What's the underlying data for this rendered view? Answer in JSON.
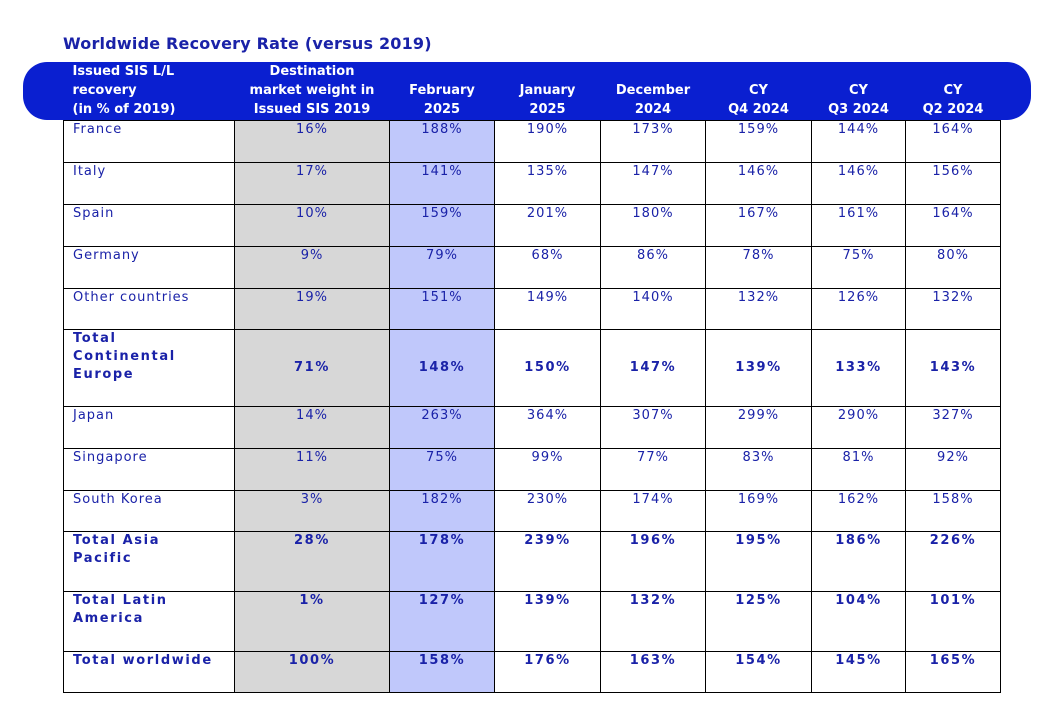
{
  "title": "Worldwide Recovery Rate (versus 2019)",
  "colors": {
    "header": "#0a1fd0",
    "text": "#1a22a8",
    "weight_col": "#d7d7d7",
    "feb_col": "#c0c8fb"
  },
  "headers": [
    [
      "Issued SIS L/L",
      "recovery",
      "(in % of 2019)"
    ],
    [
      "Destination",
      "market weight in",
      "Issued SIS 2019"
    ],
    [
      "February",
      "2025"
    ],
    [
      "January",
      "2025"
    ],
    [
      "December",
      "2024"
    ],
    [
      "CY",
      "Q4 2024"
    ],
    [
      "CY",
      "Q3 2024"
    ],
    [
      "CY",
      "Q2 2024"
    ]
  ],
  "rows": [
    {
      "name": [
        "France"
      ],
      "total": false,
      "values": [
        "16%",
        "188%",
        "190%",
        "173%",
        "159%",
        "144%",
        "164%"
      ]
    },
    {
      "name": [
        "Italy"
      ],
      "total": false,
      "values": [
        "17%",
        "141%",
        "135%",
        "147%",
        "146%",
        "146%",
        "156%"
      ]
    },
    {
      "name": [
        "Spain"
      ],
      "total": false,
      "values": [
        "10%",
        "159%",
        "201%",
        "180%",
        "167%",
        "161%",
        "164%"
      ]
    },
    {
      "name": [
        "Germany"
      ],
      "total": false,
      "values": [
        "9%",
        "79%",
        "68%",
        "86%",
        "78%",
        "75%",
        "80%"
      ]
    },
    {
      "name": [
        "Other countries"
      ],
      "total": false,
      "values": [
        "19%",
        "151%",
        "149%",
        "140%",
        "132%",
        "126%",
        "132%"
      ]
    },
    {
      "name": [
        "Total",
        "Continental",
        "Europe"
      ],
      "total": true,
      "values": [
        "71%",
        "148%",
        "150%",
        "147%",
        "139%",
        "133%",
        "143%"
      ]
    },
    {
      "name": [
        "Japan"
      ],
      "total": false,
      "values": [
        "14%",
        "263%",
        "364%",
        "307%",
        "299%",
        "290%",
        "327%"
      ]
    },
    {
      "name": [
        "Singapore"
      ],
      "total": false,
      "values": [
        "11%",
        "75%",
        "99%",
        "77%",
        "83%",
        "81%",
        "92%"
      ]
    },
    {
      "name": [
        "South Korea"
      ],
      "total": false,
      "values": [
        "3%",
        "182%",
        "230%",
        "174%",
        "169%",
        "162%",
        "158%"
      ]
    },
    {
      "name": [
        "Total Asia",
        "Pacific"
      ],
      "total": true,
      "values": [
        "28%",
        "178%",
        "239%",
        "196%",
        "195%",
        "186%",
        "226%"
      ]
    },
    {
      "name": [
        "Total Latin",
        "America"
      ],
      "total": true,
      "values": [
        "1%",
        "127%",
        "139%",
        "132%",
        "125%",
        "104%",
        "101%"
      ]
    },
    {
      "name": [
        "Total worldwide"
      ],
      "total": true,
      "values": [
        "100%",
        "158%",
        "176%",
        "163%",
        "154%",
        "145%",
        "165%"
      ]
    }
  ]
}
